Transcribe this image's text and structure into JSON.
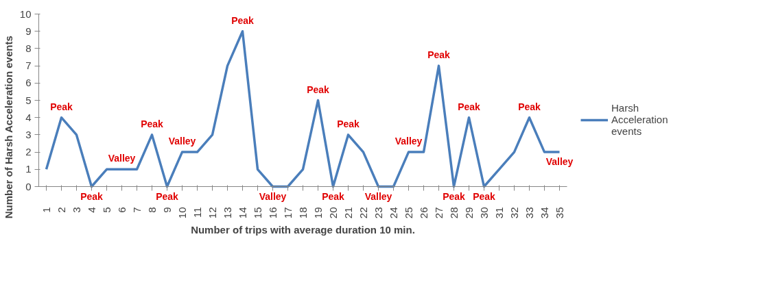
{
  "chart_data": {
    "type": "line",
    "xlabel": "Number of trips with average duration 10 min.",
    "ylabel": "Number of Harsh Acceleration events",
    "categories": [
      "1",
      "2",
      "3",
      "4",
      "5",
      "6",
      "7",
      "8",
      "9",
      "10",
      "11",
      "12",
      "13",
      "14",
      "15",
      "16",
      "17",
      "18",
      "19",
      "20",
      "21",
      "22",
      "23",
      "24",
      "25",
      "26",
      "27",
      "28",
      "29",
      "30",
      "31",
      "32",
      "33",
      "34",
      "35"
    ],
    "series": [
      {
        "name": "Harsh Acceleration events",
        "color": "#4a7ebb",
        "values": [
          1,
          4,
          3,
          0,
          1,
          1,
          1,
          3,
          0,
          2,
          2,
          3,
          7,
          9,
          1,
          0,
          0,
          1,
          5,
          0,
          3,
          2,
          0,
          0,
          2,
          2,
          7,
          0,
          4,
          0,
          1,
          2,
          4,
          2,
          2
        ]
      }
    ],
    "ylim": [
      0,
      10
    ],
    "yticks": [
      0,
      1,
      2,
      3,
      4,
      5,
      6,
      7,
      8,
      9,
      10
    ],
    "grid": false,
    "legend": "right",
    "marker": "none",
    "line_style": "solid",
    "annotations": [
      {
        "text": "Peak",
        "x": "2",
        "y": 4
      },
      {
        "text": "Peak",
        "x": "4",
        "y": 0
      },
      {
        "text": "Valley",
        "x": "6",
        "y": 1
      },
      {
        "text": "Peak",
        "x": "8",
        "y": 3
      },
      {
        "text": "Peak",
        "x": "9",
        "y": 0
      },
      {
        "text": "Valley",
        "x": "10",
        "y": 2
      },
      {
        "text": "Peak",
        "x": "14",
        "y": 9
      },
      {
        "text": "Valley",
        "x": "16",
        "y": 0
      },
      {
        "text": "Peak",
        "x": "19",
        "y": 5
      },
      {
        "text": "Peak",
        "x": "20",
        "y": 0
      },
      {
        "text": "Peak",
        "x": "21",
        "y": 3
      },
      {
        "text": "Valley",
        "x": "23",
        "y": 0
      },
      {
        "text": "Valley",
        "x": "25",
        "y": 2
      },
      {
        "text": "Peak",
        "x": "27",
        "y": 7
      },
      {
        "text": "Peak",
        "x": "28",
        "y": 0
      },
      {
        "text": "Peak",
        "x": "29",
        "y": 4
      },
      {
        "text": "Peak",
        "x": "30",
        "y": 0
      },
      {
        "text": "Peak",
        "x": "33",
        "y": 4
      },
      {
        "text": "Valley",
        "x": "35",
        "y": 2
      }
    ]
  }
}
